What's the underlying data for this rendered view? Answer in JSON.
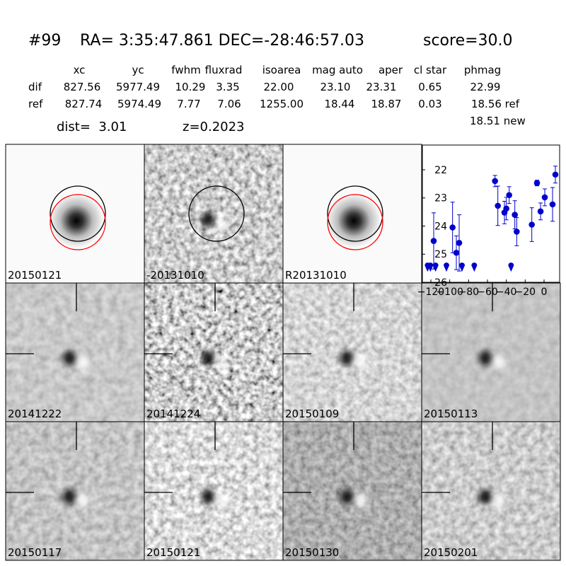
{
  "header": {
    "id": "#99",
    "coords": "RA= 3:35:47.861 DEC=-28:46:57.03",
    "score": "score=30.0"
  },
  "table": {
    "columns": [
      "xc",
      "yc",
      "fwhm",
      "fluxrad",
      "isoarea",
      "mag auto",
      "aper",
      "cl star",
      "phmag"
    ],
    "rows": [
      {
        "label": "dif",
        "values": [
          "827.56",
          "5977.49",
          "10.29",
          "3.35",
          "22.00",
          "23.10",
          "23.31",
          "0.65",
          "22.99"
        ]
      },
      {
        "label": "ref",
        "values": [
          "827.74",
          "5974.49",
          "7.77",
          "7.06",
          "1255.00",
          "18.44",
          "18.87",
          "0.03",
          "18.56 ref"
        ]
      }
    ],
    "extra": "18.51 new"
  },
  "dist": "dist=  3.01",
  "z": "z=0.2023",
  "stamps": [
    {
      "label": "20150121"
    },
    {
      "label": "-20131010"
    },
    {
      "label": "R20131010"
    },
    {
      "label": "20141222"
    },
    {
      "label": "20141224"
    },
    {
      "label": "20150109"
    },
    {
      "label": "20150113"
    },
    {
      "label": "20150117"
    },
    {
      "label": "20150121",
      "label_color": "#ff0000"
    },
    {
      "label": "20150130"
    },
    {
      "label": "20150201"
    }
  ],
  "chart_data": {
    "type": "scatter",
    "xlim": [
      -129,
      16.5
    ],
    "ylim": [
      26,
      21.12
    ],
    "xticks": [
      {
        "value": -120,
        "label": "−120"
      },
      {
        "value": -100,
        "label": "−100"
      },
      {
        "value": -80,
        "label": "−80"
      },
      {
        "value": -60,
        "label": "−60"
      },
      {
        "value": -40,
        "label": "−40"
      },
      {
        "value": -20,
        "label": "−20"
      },
      0
    ],
    "yticks": [
      22,
      23,
      24,
      25,
      26
    ],
    "series": [
      {
        "color": "#0000cc",
        "x": [
          -117,
          -97,
          -93,
          -90,
          -52,
          -49,
          -42,
          -40,
          -37,
          -31,
          -29,
          -13,
          -7.5,
          -3.7,
          0.75,
          9,
          12
        ],
        "values": [
          24.53,
          24.05,
          24.95,
          24.6,
          22.4,
          23.28,
          23.52,
          23.38,
          22.9,
          23.6,
          24.2,
          23.95,
          22.47,
          23.48,
          22.98,
          23.23,
          22.17
        ],
        "errors": [
          1.0,
          0.9,
          0.6,
          1.0,
          0.2,
          0.7,
          0.4,
          0.4,
          0.3,
          0.5,
          0.5,
          0.6,
          0.1,
          0.3,
          0.3,
          0.6,
          0.3
        ]
      },
      {
        "color": "#0000cc",
        "marker": "upper-limit",
        "x": [
          -123.5,
          -120.5,
          -115,
          -103.5,
          -87,
          -74,
          -35
        ],
        "values": [
          25.5,
          25.5,
          25.5,
          25.5,
          25.5,
          25.5,
          25.5
        ]
      }
    ]
  }
}
